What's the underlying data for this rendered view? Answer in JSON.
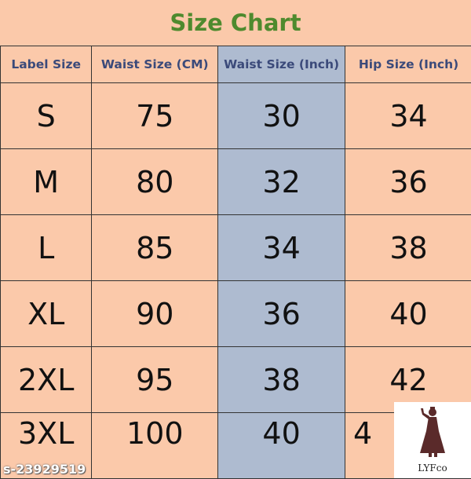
{
  "title": "Size Chart",
  "columns": [
    "Label Size",
    "Waist Size (CM)",
    "Waist Size (Inch)",
    "Hip Size (Inch)"
  ],
  "rows": [
    [
      "S",
      "75",
      "30",
      "34"
    ],
    [
      "M",
      "80",
      "32",
      "36"
    ],
    [
      "L",
      "85",
      "34",
      "38"
    ],
    [
      "XL",
      "90",
      "36",
      "40"
    ],
    [
      "2XL",
      "95",
      "38",
      "42"
    ],
    [
      "3XL",
      "100",
      "40",
      "4"
    ]
  ],
  "logo": {
    "brand": "LYFco",
    "icon": "dancer-figure-icon"
  },
  "watermark": "s-23929519",
  "colors": {
    "background": "#fbc9aa",
    "highlight_column": "#aebbd0",
    "title": "#4e8a2e",
    "header_text": "#3b4a7a"
  }
}
